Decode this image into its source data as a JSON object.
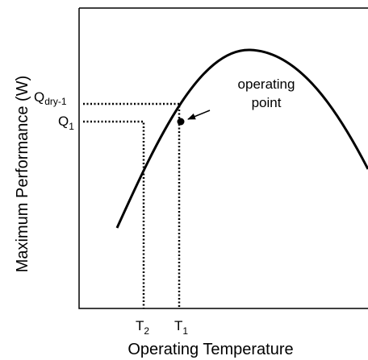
{
  "axis_labels": {
    "y": "Maximum Performance (W)",
    "x": "Operating Temperature"
  },
  "labels": {
    "q_dry": {
      "base": "Q",
      "sub": "dry-1"
    },
    "q_1": {
      "base": "Q",
      "sub": "1"
    },
    "t_2": {
      "base": "T",
      "sub": "2"
    },
    "t_1": {
      "base": "T",
      "sub": "1"
    }
  },
  "annotation": [
    "operating",
    "point"
  ]
}
